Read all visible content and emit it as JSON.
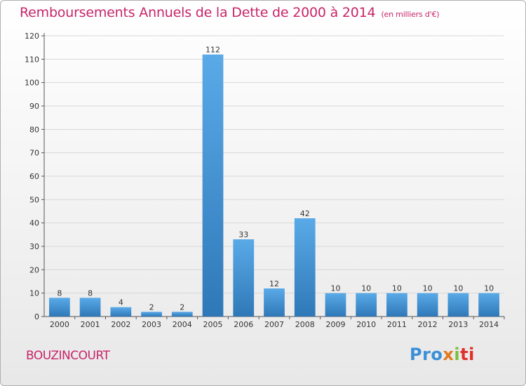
{
  "header": {
    "title": "Remboursements Annuels de la Dette de 2000 à 2014",
    "subtitle": "(en milliers d'€)"
  },
  "footer": {
    "commune": "BOUZINCOURT",
    "logo": [
      "Pro",
      "x",
      "i",
      "ti"
    ]
  },
  "colors": {
    "title": "#c8256a",
    "bar_light": "#5aaae8",
    "bar_dark": "#2f78b8",
    "grid": "#d8d8d8"
  },
  "chart_data": {
    "type": "bar",
    "title": "Remboursements Annuels de la Dette de 2000 à 2014",
    "subtitle": "(en milliers d'€)",
    "xlabel": "",
    "ylabel": "",
    "categories": [
      "2000",
      "2001",
      "2002",
      "2003",
      "2004",
      "2005",
      "2006",
      "2007",
      "2008",
      "2009",
      "2010",
      "2011",
      "2012",
      "2013",
      "2014"
    ],
    "values": [
      8,
      8,
      4,
      2,
      2,
      112,
      33,
      12,
      42,
      10,
      10,
      10,
      10,
      10,
      10
    ],
    "ylim": [
      0,
      120
    ],
    "yticks": [
      0,
      10,
      20,
      30,
      40,
      50,
      60,
      70,
      80,
      90,
      100,
      110,
      120
    ],
    "grid": true
  }
}
